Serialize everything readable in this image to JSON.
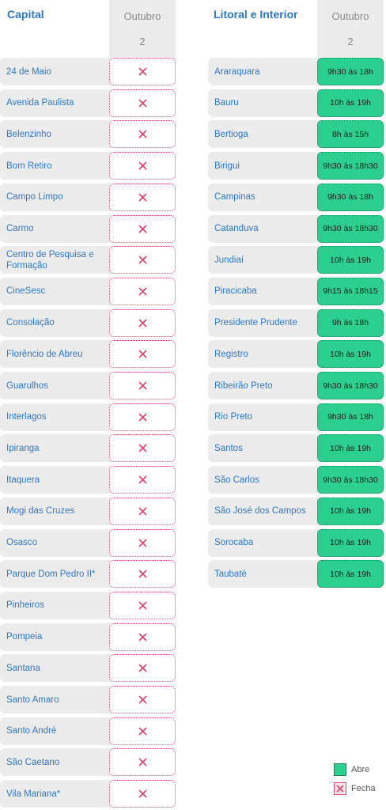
{
  "capital": {
    "title": "Capital",
    "month": "Outubro",
    "day": "2",
    "units": [
      {
        "name": "24 de Maio",
        "status": "closed"
      },
      {
        "name": "Avenida Paulista",
        "status": "closed"
      },
      {
        "name": "Belenzinho",
        "status": "closed"
      },
      {
        "name": "Bom Retiro",
        "status": "closed"
      },
      {
        "name": "Campo Limpo",
        "status": "closed"
      },
      {
        "name": "Carmo",
        "status": "closed"
      },
      {
        "name": "Centro de Pesquisa e Formação",
        "status": "closed"
      },
      {
        "name": "CineSesc",
        "status": "closed"
      },
      {
        "name": "Consolação",
        "status": "closed"
      },
      {
        "name": "Florêncio de Abreu",
        "status": "closed"
      },
      {
        "name": "Guarulhos",
        "status": "closed"
      },
      {
        "name": "Interlagos",
        "status": "closed"
      },
      {
        "name": "Ipiranga",
        "status": "closed"
      },
      {
        "name": "Itaquera",
        "status": "closed"
      },
      {
        "name": "Mogi das Cruzes",
        "status": "closed"
      },
      {
        "name": "Osasco",
        "status": "closed"
      },
      {
        "name": "Parque Dom Pedro II*",
        "status": "closed"
      },
      {
        "name": "Pinheiros",
        "status": "closed"
      },
      {
        "name": "Pompeia",
        "status": "closed"
      },
      {
        "name": "Santana",
        "status": "closed"
      },
      {
        "name": "Santo Amaro",
        "status": "closed"
      },
      {
        "name": "Santo André",
        "status": "closed"
      },
      {
        "name": "São Caetano",
        "status": "closed"
      },
      {
        "name": "Vila Mariana*",
        "status": "closed"
      }
    ]
  },
  "interior": {
    "title": "Litoral e Interior",
    "month": "Outubro",
    "day": "2",
    "units": [
      {
        "name": "Araraquara",
        "status": "open",
        "hours": "9h30 às 18h"
      },
      {
        "name": "Bauru",
        "status": "open",
        "hours": "10h às 19h"
      },
      {
        "name": "Bertioga",
        "status": "open",
        "hours": "8h às 15h"
      },
      {
        "name": "Birigui",
        "status": "open",
        "hours": "9h30 às 18h30"
      },
      {
        "name": "Campinas",
        "status": "open",
        "hours": "9h30 às 18h"
      },
      {
        "name": "Catanduva",
        "status": "open",
        "hours": "9h30 às 18h30"
      },
      {
        "name": "Jundiaí",
        "status": "open",
        "hours": "10h às 19h"
      },
      {
        "name": "Piracicaba",
        "status": "open",
        "hours": "9h15 às 18h15"
      },
      {
        "name": "Presidente Prudente",
        "status": "open",
        "hours": "9h às 18h"
      },
      {
        "name": "Registro",
        "status": "open",
        "hours": "10h às 19h"
      },
      {
        "name": "Ribeirão Preto",
        "status": "open",
        "hours": "9h30 às 18h30"
      },
      {
        "name": "Rio Preto",
        "status": "open",
        "hours": "9h30 às 18h"
      },
      {
        "name": "Santos",
        "status": "open",
        "hours": "10h às 19h"
      },
      {
        "name": "São Carlos",
        "status": "open",
        "hours": "9h30 às 18h30"
      },
      {
        "name": "São José dos Campos",
        "status": "open",
        "hours": "10h às 19h"
      },
      {
        "name": "Sorocaba",
        "status": "open",
        "hours": "10h às 19h"
      },
      {
        "name": "Taubaté",
        "status": "open",
        "hours": "10h às 19h"
      }
    ]
  },
  "legend": {
    "open_label": "Abre",
    "closed_label": "Fecha"
  },
  "colors": {
    "accent": "#2d78c8",
    "open": "#2bd08f",
    "closed": "#e0456e",
    "row_bg": "#ececec"
  }
}
